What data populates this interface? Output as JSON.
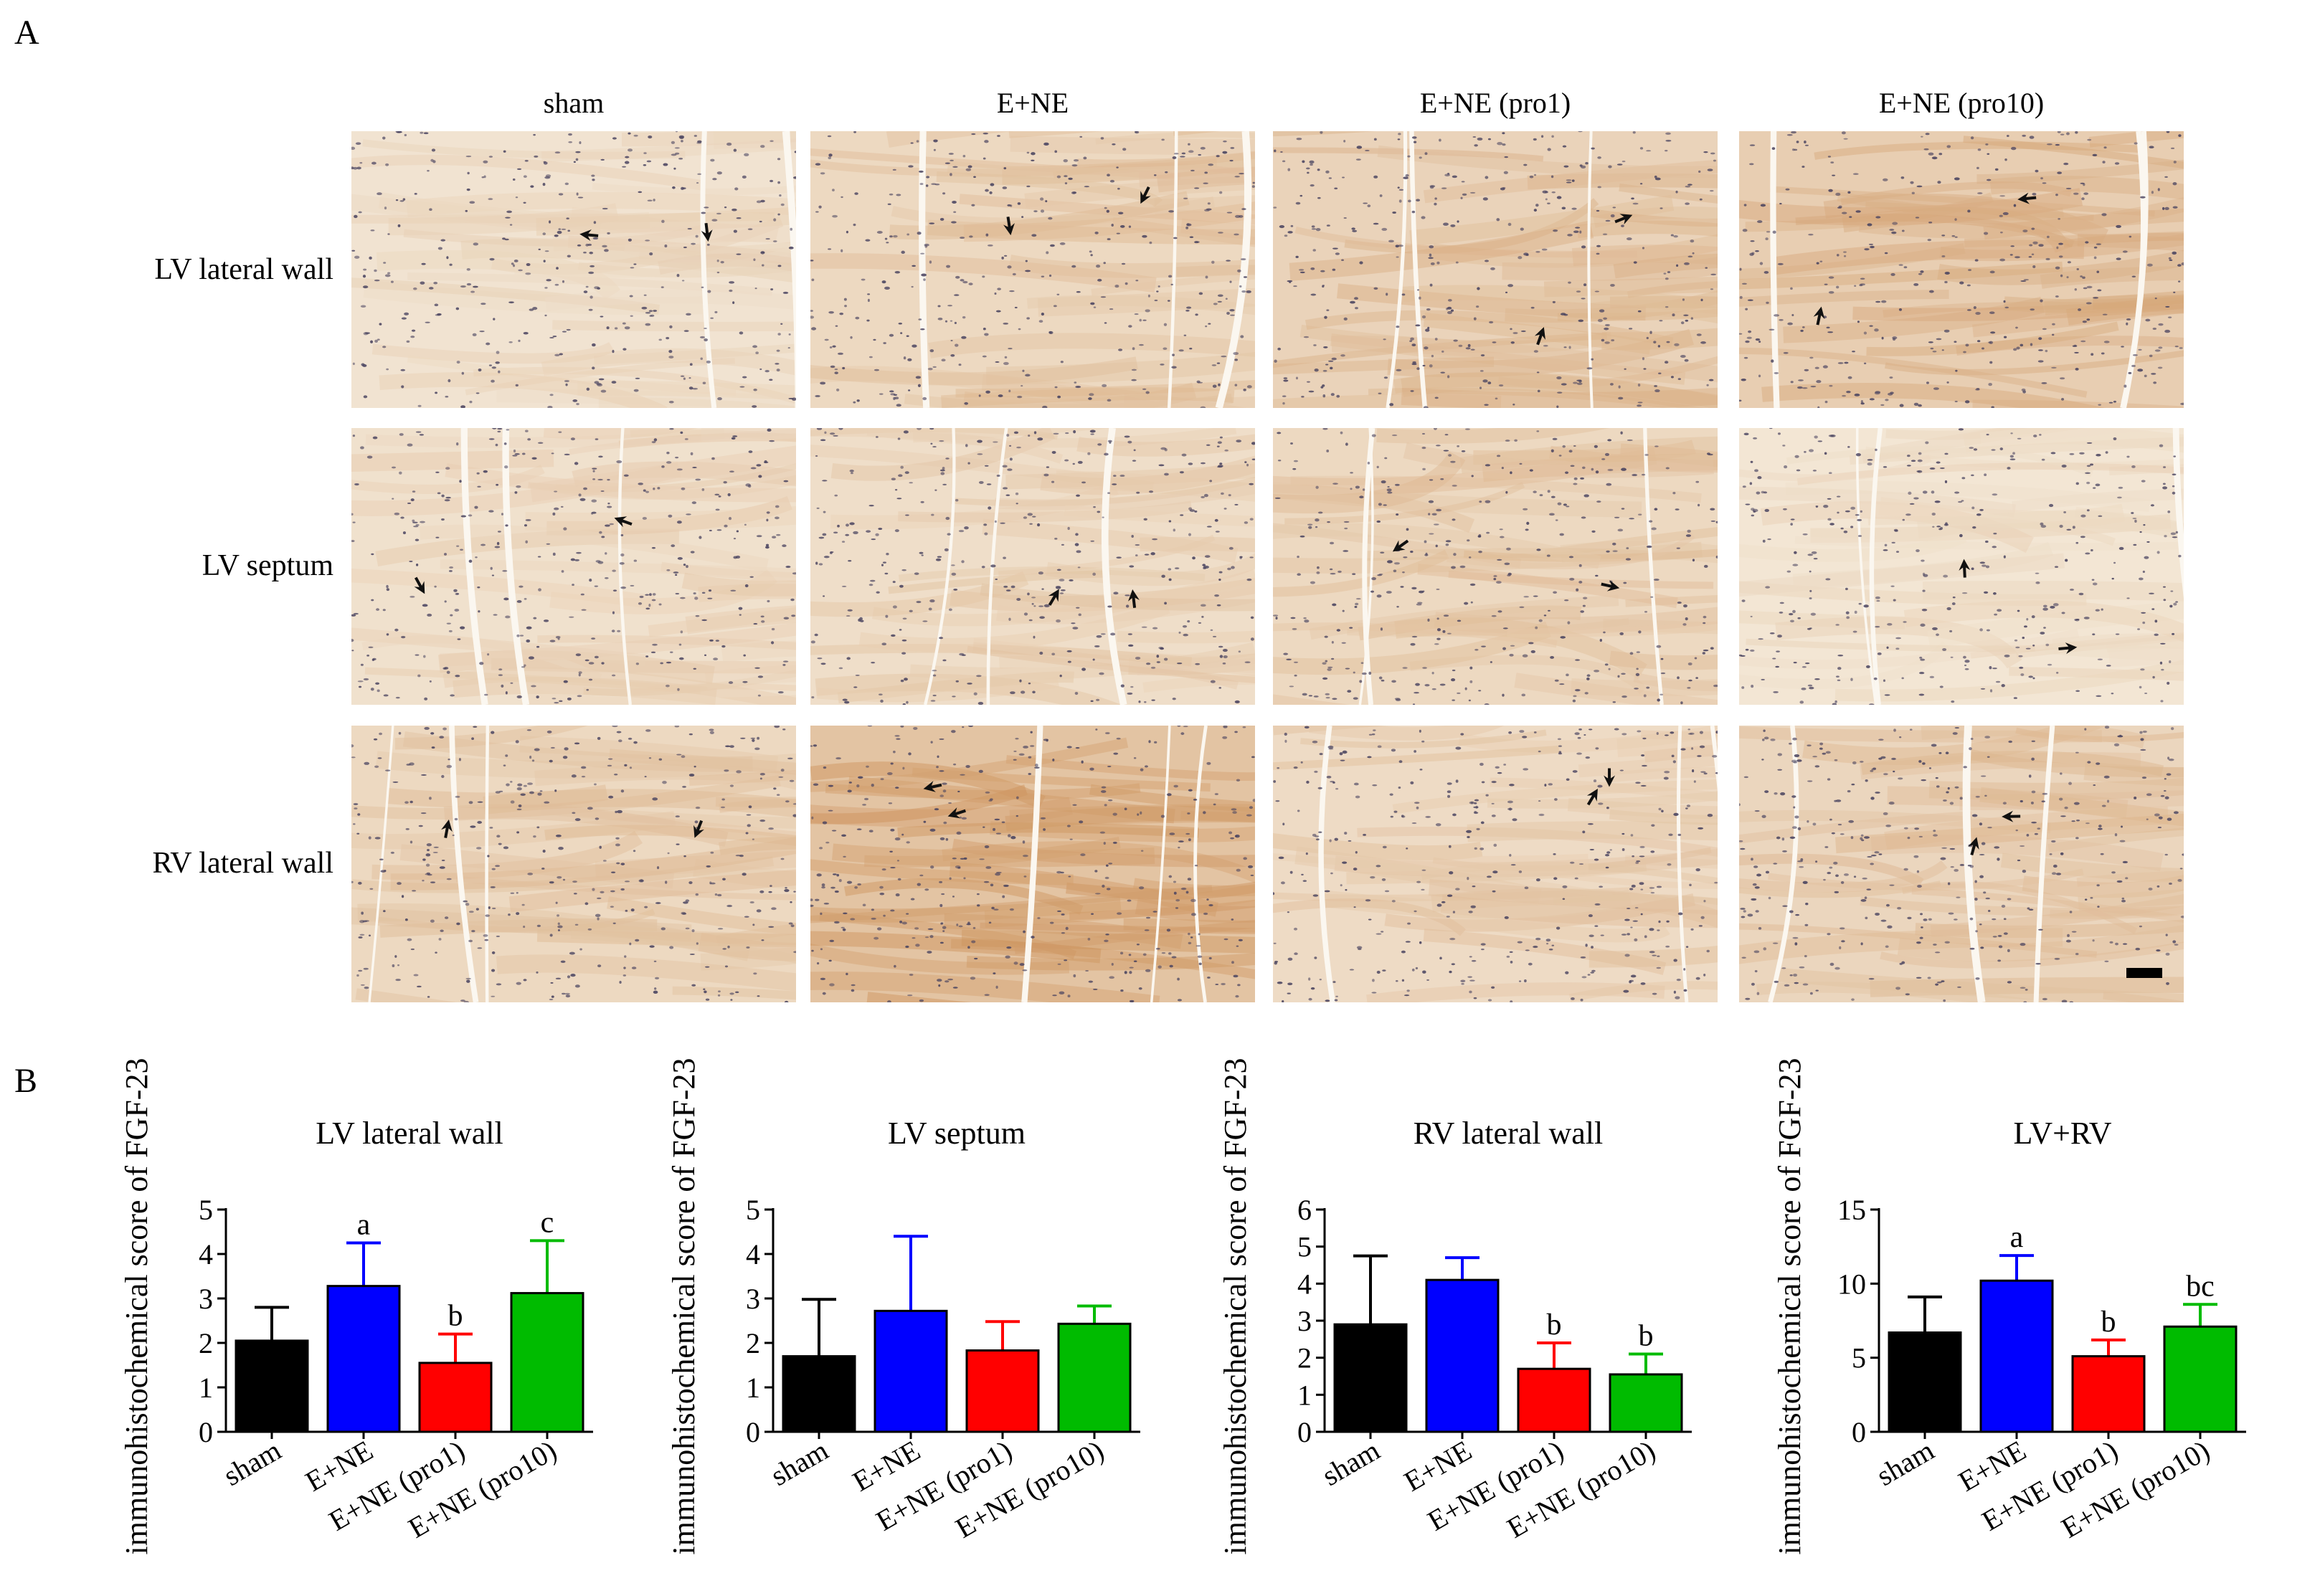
{
  "panels": {
    "a_label": "A",
    "b_label": "B"
  },
  "micrographs": {
    "columns": [
      "sham",
      "E+NE",
      "E+NE (pro1)",
      "E+NE (pro10)"
    ],
    "rows": [
      "LV lateral wall",
      "LV septum",
      "RV lateral wall"
    ],
    "stain_intensity": [
      [
        0.15,
        0.35,
        0.45,
        0.55
      ],
      [
        0.2,
        0.25,
        0.35,
        0.1
      ],
      [
        0.35,
        0.75,
        0.3,
        0.4
      ]
    ],
    "colors": {
      "background": "#f5ebdc",
      "stain": "#c98c52",
      "nuclei": "#4a4460",
      "arrow": "#111111"
    }
  },
  "chart_data": [
    {
      "type": "bar",
      "title": "LV lateral wall",
      "ylabel": "immunohistochemical score of FGF-23",
      "categories": [
        "sham",
        "E+NE",
        "E+NE (pro1)",
        "E+NE (pro10)"
      ],
      "values": [
        2.05,
        3.28,
        1.55,
        3.12
      ],
      "errors": [
        0.75,
        0.97,
        0.65,
        1.18
      ],
      "annotations": [
        "",
        "a",
        "b",
        "c"
      ],
      "ylim": [
        0,
        5
      ],
      "yticks": [
        0,
        1,
        2,
        3,
        4,
        5
      ],
      "colors": [
        "#000000",
        "#0000ff",
        "#ff0000",
        "#00bb00"
      ]
    },
    {
      "type": "bar",
      "title": "LV septum",
      "ylabel": "immunohistochemical score of FGF-23",
      "categories": [
        "sham",
        "E+NE",
        "E+NE (pro1)",
        "E+NE (pro10)"
      ],
      "values": [
        1.7,
        2.72,
        1.83,
        2.43
      ],
      "errors": [
        1.28,
        1.68,
        0.65,
        0.4
      ],
      "annotations": [
        "",
        "",
        "",
        ""
      ],
      "ylim": [
        0,
        5
      ],
      "yticks": [
        0,
        1,
        2,
        3,
        4,
        5
      ],
      "colors": [
        "#000000",
        "#0000ff",
        "#ff0000",
        "#00bb00"
      ]
    },
    {
      "type": "bar",
      "title": "RV lateral wall",
      "ylabel": "immunohistochemical score of FGF-23",
      "categories": [
        "sham",
        "E+NE",
        "E+NE (pro1)",
        "E+NE (pro10)"
      ],
      "values": [
        2.9,
        4.1,
        1.7,
        1.55
      ],
      "errors": [
        1.85,
        0.6,
        0.7,
        0.55
      ],
      "annotations": [
        "",
        "",
        "b",
        "b"
      ],
      "ylim": [
        0,
        6
      ],
      "yticks": [
        0,
        1,
        2,
        3,
        4,
        5,
        6
      ],
      "colors": [
        "#000000",
        "#0000ff",
        "#ff0000",
        "#00bb00"
      ]
    },
    {
      "type": "bar",
      "title": "LV+RV",
      "ylabel": "immunohistochemical score of FGF-23",
      "categories": [
        "sham",
        "E+NE",
        "E+NE (pro1)",
        "E+NE (pro10)"
      ],
      "values": [
        6.7,
        10.2,
        5.1,
        7.1
      ],
      "errors": [
        2.4,
        1.7,
        1.1,
        1.5
      ],
      "annotations": [
        "",
        "a",
        "b",
        "bc"
      ],
      "ylim": [
        0,
        15
      ],
      "yticks": [
        0,
        5,
        10,
        15
      ],
      "colors": [
        "#000000",
        "#0000ff",
        "#ff0000",
        "#00bb00"
      ]
    }
  ]
}
